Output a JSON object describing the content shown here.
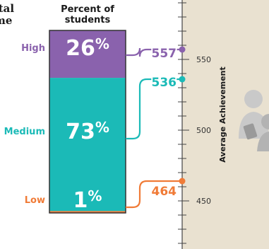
{
  "partial_title": {
    "line1": "ital",
    "line2": "me"
  },
  "column_header": {
    "line1": "Percent of",
    "line2": "students"
  },
  "colors": {
    "High": "#8a62ad",
    "Medium": "#1bbab7",
    "Low": "#f07b37",
    "panel": "#e9e1d0",
    "axis": "#444444"
  },
  "chart_data": {
    "type": "bar",
    "stacked": true,
    "categories": [
      "High",
      "Medium",
      "Low"
    ],
    "series": [
      {
        "values": [
          26,
          73,
          1
        ]
      }
    ],
    "value_labels": [
      "26%",
      "73%",
      "1%"
    ],
    "ylabel": "Percent of students",
    "scale": {
      "label": "Average Achievement",
      "ylim": [
        416,
        592
      ],
      "ticks": [
        450,
        500,
        550
      ],
      "points": [
        {
          "category": "High",
          "value": 557,
          "label": "557"
        },
        {
          "category": "Medium",
          "value": 536,
          "label": "536"
        },
        {
          "category": "Low",
          "value": 464,
          "label": "464"
        }
      ]
    },
    "grid": false,
    "legend": "none"
  },
  "decorative": {
    "icon": "students-with-tablet-icon"
  }
}
